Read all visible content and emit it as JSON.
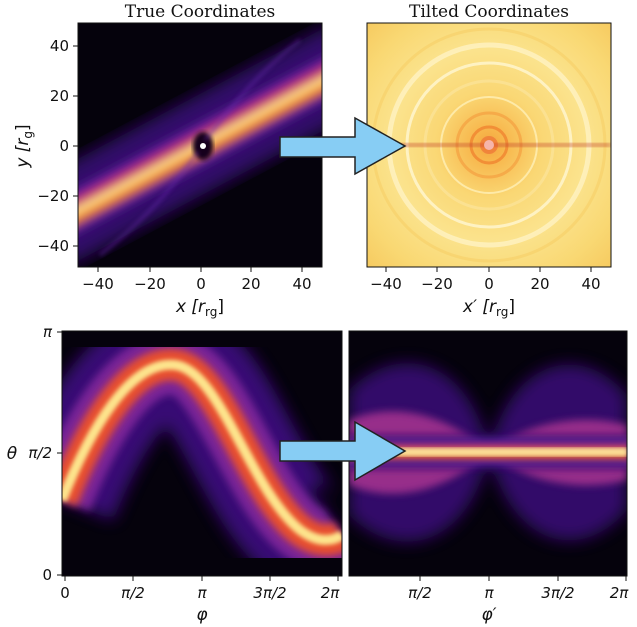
{
  "panels": {
    "top_left": {
      "title": "True Coordinates",
      "xlabel": "x [r",
      "xlabel_sub": "rg",
      "xlabel_close": "]",
      "ylabel": "y [r",
      "ylabel_sub": "g",
      "ylabel_close": "]",
      "xticks": [
        "−40",
        "−20",
        "0",
        "20",
        "40"
      ],
      "yticks": [
        "40",
        "20",
        "0",
        "−20",
        "−40"
      ]
    },
    "top_right": {
      "title": "Tilted Coordinates",
      "xlabel": "x′ [r",
      "xlabel_sub": "rg",
      "xlabel_close": "]",
      "xticks": [
        "−40",
        "−20",
        "0",
        "20",
        "40"
      ]
    },
    "bottom_left": {
      "xlabel": "φ",
      "ylabel": "θ",
      "xticks": [
        "0",
        "π/2",
        "π",
        "3π/2",
        "2π"
      ],
      "yticks": [
        "π",
        "π/2",
        "0"
      ]
    },
    "bottom_right": {
      "xlabel": "φ′",
      "xticks": [
        "π/2",
        "π",
        "3π/2",
        "2π"
      ]
    }
  },
  "colors": {
    "arrow_fill": "#87cdf4",
    "arrow_stroke": "#222222",
    "inferno_dark": "#05020c",
    "inferno_mid": "#7a20a8",
    "inferno_hot": "#f57a22",
    "inferno_bright": "#fcfcb4"
  }
}
